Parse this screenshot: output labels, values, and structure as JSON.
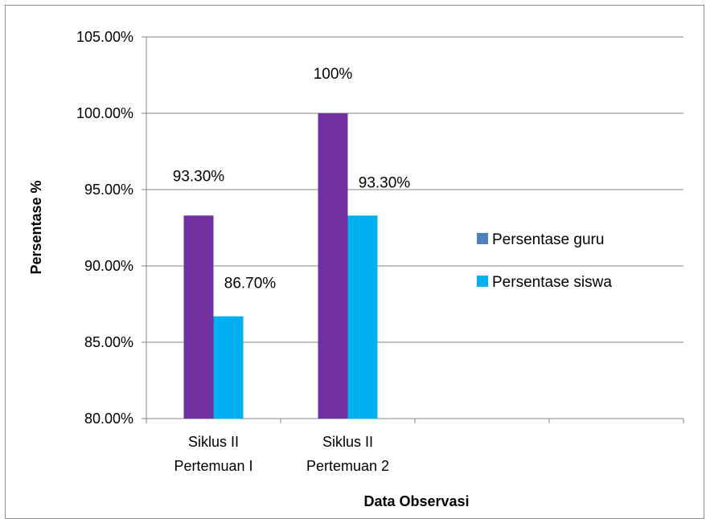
{
  "chart_data": {
    "type": "bar",
    "categories": [
      [
        "Siklus II",
        "Pertemuan I"
      ],
      [
        "Siklus II",
        "Pertemuan 2"
      ],
      [],
      []
    ],
    "series": [
      {
        "name": "Persentase guru",
        "values": [
          93.3,
          100,
          null,
          null
        ],
        "labels": [
          "93.30%",
          "100%",
          "",
          ""
        ],
        "color": "#7030a0",
        "legend_swatch_color": "#4f81bd"
      },
      {
        "name": "Persentase siswa",
        "values": [
          86.7,
          93.3,
          null,
          null
        ],
        "labels": [
          "86.70%",
          "93.30%",
          "",
          ""
        ],
        "color": "#00b0f0",
        "legend_swatch_color": "#00b0f0"
      }
    ],
    "ylim": [
      80,
      105
    ],
    "yticks": [
      "80.00%",
      "85.00%",
      "90.00%",
      "95.00%",
      "100.00%",
      "105.00%"
    ],
    "ylabel": "Persentase %",
    "xlabel": "Data Observasi",
    "grid": true,
    "legend_position": "right"
  }
}
